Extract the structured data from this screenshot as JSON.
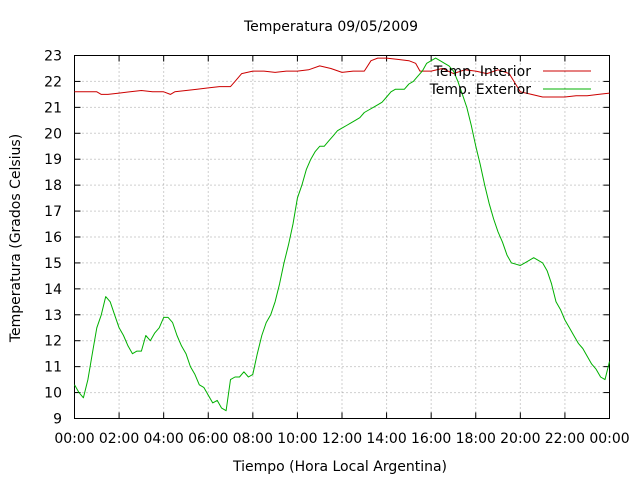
{
  "chart_data": {
    "type": "line",
    "title": "Temperatura 09/05/2009",
    "xlabel": "Tiempo (Hora Local Argentina)",
    "ylabel": "Temperatura (Grados Celsius)",
    "xlim": [
      0,
      24
    ],
    "ylim": [
      9,
      23
    ],
    "x_ticks": [
      "00:00",
      "02:00",
      "04:00",
      "06:00",
      "08:00",
      "10:00",
      "12:00",
      "14:00",
      "16:00",
      "18:00",
      "20:00",
      "22:00",
      "00:00"
    ],
    "y_ticks": [
      "9",
      "10",
      "11",
      "12",
      "13",
      "14",
      "15",
      "16",
      "17",
      "18",
      "19",
      "20",
      "21",
      "22",
      "23"
    ],
    "grid": true,
    "legend_position": "top-right",
    "x_unit": "hours",
    "series": [
      {
        "name": "Temp. Interior",
        "color": "#cc0000",
        "x": [
          0,
          0.5,
          1,
          1.2,
          1.5,
          2,
          2.5,
          3,
          3.5,
          4,
          4.3,
          4.5,
          5,
          5.5,
          6,
          6.5,
          7,
          7.2,
          7.5,
          8,
          8.5,
          9,
          9.5,
          10,
          10.5,
          11,
          11.5,
          12,
          12.5,
          13,
          13.3,
          13.6,
          14,
          14.5,
          15,
          15.3,
          15.5,
          16,
          16.5,
          17,
          17.5,
          18,
          18.5,
          19,
          19.5,
          20,
          20.5,
          21,
          21.5,
          22,
          22.5,
          23,
          23.5,
          24
        ],
        "y": [
          21.6,
          21.6,
          21.6,
          21.5,
          21.5,
          21.55,
          21.6,
          21.65,
          21.6,
          21.6,
          21.5,
          21.6,
          21.65,
          21.7,
          21.75,
          21.8,
          21.8,
          22.0,
          22.3,
          22.4,
          22.4,
          22.35,
          22.4,
          22.4,
          22.45,
          22.6,
          22.5,
          22.35,
          22.4,
          22.4,
          22.8,
          22.9,
          22.9,
          22.85,
          22.8,
          22.7,
          22.4,
          22.4,
          22.5,
          22.3,
          22.45,
          22.4,
          22.3,
          22.45,
          22.3,
          21.6,
          21.5,
          21.4,
          21.4,
          21.4,
          21.45,
          21.45,
          21.5,
          21.55
        ]
      },
      {
        "name": "Temp. Exterior",
        "color": "#00b000",
        "x": [
          0,
          0.2,
          0.4,
          0.6,
          0.8,
          1,
          1.2,
          1.4,
          1.6,
          1.8,
          2,
          2.2,
          2.4,
          2.6,
          2.8,
          3,
          3.2,
          3.4,
          3.6,
          3.8,
          4,
          4.2,
          4.4,
          4.6,
          4.8,
          5,
          5.2,
          5.4,
          5.6,
          5.8,
          6,
          6.2,
          6.4,
          6.6,
          6.8,
          7,
          7.2,
          7.4,
          7.6,
          7.8,
          8,
          8.2,
          8.4,
          8.6,
          8.8,
          9,
          9.2,
          9.4,
          9.6,
          9.8,
          10,
          10.2,
          10.4,
          10.6,
          10.8,
          11,
          11.2,
          11.4,
          11.6,
          11.8,
          12,
          12.2,
          12.4,
          12.6,
          12.8,
          13,
          13.2,
          13.4,
          13.6,
          13.8,
          14,
          14.2,
          14.4,
          14.6,
          14.8,
          15,
          15.2,
          15.4,
          15.6,
          15.8,
          16,
          16.2,
          16.4,
          16.6,
          16.8,
          17,
          17.2,
          17.4,
          17.6,
          17.8,
          18,
          18.2,
          18.4,
          18.6,
          18.8,
          19,
          19.2,
          19.4,
          19.6,
          19.8,
          20,
          20.2,
          20.4,
          20.6,
          20.8,
          21,
          21.2,
          21.4,
          21.6,
          21.8,
          22,
          22.2,
          22.4,
          22.6,
          22.8,
          23,
          23.2,
          23.4,
          23.6,
          23.8,
          24
        ],
        "y": [
          10.3,
          10.0,
          9.8,
          10.5,
          11.5,
          12.5,
          13.0,
          13.7,
          13.5,
          13.0,
          12.5,
          12.2,
          11.8,
          11.5,
          11.6,
          11.6,
          12.2,
          12.0,
          12.3,
          12.5,
          12.9,
          12.9,
          12.7,
          12.2,
          11.8,
          11.5,
          11.0,
          10.7,
          10.3,
          10.2,
          9.9,
          9.6,
          9.7,
          9.4,
          9.3,
          10.5,
          10.6,
          10.6,
          10.8,
          10.6,
          10.7,
          11.5,
          12.2,
          12.7,
          13.0,
          13.5,
          14.2,
          15.0,
          15.7,
          16.5,
          17.5,
          18.0,
          18.6,
          19.0,
          19.3,
          19.5,
          19.5,
          19.7,
          19.9,
          20.1,
          20.2,
          20.3,
          20.4,
          20.5,
          20.6,
          20.8,
          20.9,
          21.0,
          21.1,
          21.2,
          21.4,
          21.6,
          21.7,
          21.7,
          21.7,
          21.9,
          22.0,
          22.2,
          22.4,
          22.7,
          22.8,
          22.9,
          22.8,
          22.7,
          22.6,
          22.4,
          22.0,
          21.5,
          21.0,
          20.3,
          19.5,
          18.8,
          18.0,
          17.3,
          16.7,
          16.2,
          15.8,
          15.3,
          15.0,
          14.95,
          14.9,
          15.0,
          15.1,
          15.2,
          15.1,
          15.0,
          14.7,
          14.2,
          13.5,
          13.2,
          12.8,
          12.5,
          12.2,
          11.9,
          11.7,
          11.4,
          11.1,
          10.9,
          10.6,
          10.5,
          11.2
        ]
      }
    ]
  }
}
